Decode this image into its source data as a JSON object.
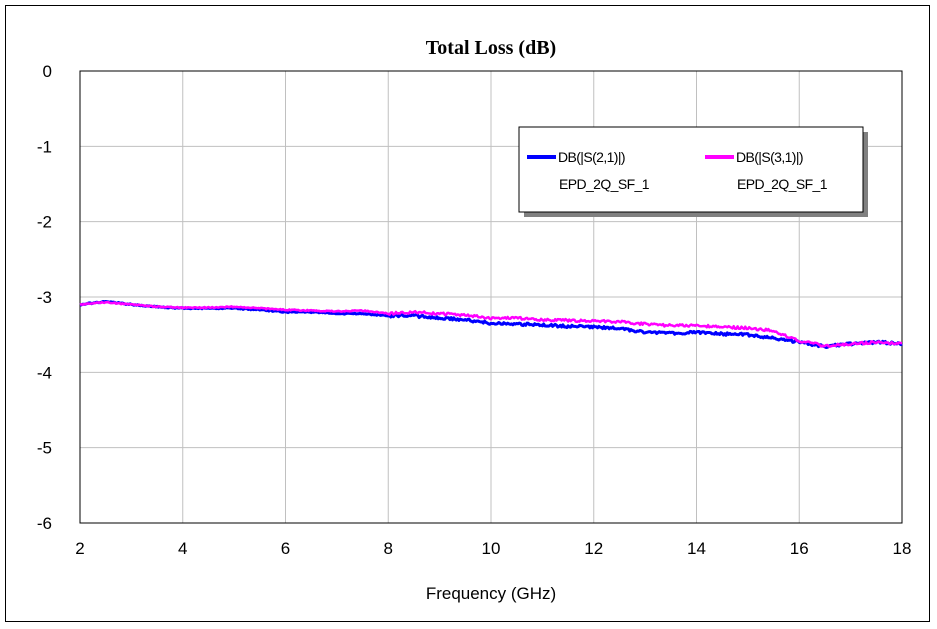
{
  "chart_data": {
    "type": "line",
    "title": "Total Loss (dB)",
    "xlabel": "Frequency (GHz)",
    "ylabel": "",
    "xlim": [
      2,
      18
    ],
    "ylim": [
      -6,
      0
    ],
    "xticks": [
      2,
      4,
      6,
      8,
      10,
      12,
      14,
      16,
      18
    ],
    "yticks": [
      0,
      -1,
      -2,
      -3,
      -4,
      -5,
      -6
    ],
    "xtick_labels": [
      "2",
      "4",
      "6",
      "8",
      "10",
      "12",
      "14",
      "16",
      "18"
    ],
    "ytick_labels": [
      "0",
      "-1",
      "-2",
      "-3",
      "-4",
      "-5",
      "-6"
    ],
    "grid": true,
    "legend_position": "top-right",
    "series": [
      {
        "name": "DB(|S(2,1)|)",
        "subname": "EPD_2Q_SF_1",
        "color": "#0000ff",
        "x": [
          2,
          2.5,
          3,
          3.5,
          4,
          4.5,
          5,
          5.5,
          6,
          6.5,
          7,
          7.5,
          8,
          8.5,
          9,
          9.5,
          10,
          10.5,
          11,
          11.5,
          12,
          12.5,
          13,
          13.5,
          14,
          14.5,
          15,
          15.5,
          16,
          16.5,
          17,
          17.5,
          18
        ],
        "y": [
          -3.1,
          -3.06,
          -3.1,
          -3.13,
          -3.15,
          -3.15,
          -3.15,
          -3.17,
          -3.2,
          -3.2,
          -3.22,
          -3.22,
          -3.25,
          -3.25,
          -3.28,
          -3.3,
          -3.35,
          -3.36,
          -3.37,
          -3.39,
          -3.4,
          -3.42,
          -3.47,
          -3.48,
          -3.47,
          -3.49,
          -3.5,
          -3.55,
          -3.6,
          -3.66,
          -3.62,
          -3.6,
          -3.62
        ]
      },
      {
        "name": "DB(|S(3,1)|)",
        "subname": "EPD_2Q_SF_1",
        "color": "#ff00ff",
        "x": [
          2,
          2.5,
          3,
          3.5,
          4,
          4.5,
          5,
          5.5,
          6,
          6.5,
          7,
          7.5,
          8,
          8.5,
          9,
          9.5,
          10,
          10.5,
          11,
          11.5,
          12,
          12.5,
          13,
          13.5,
          14,
          14.5,
          15,
          15.5,
          16,
          16.5,
          17,
          17.5,
          18
        ],
        "y": [
          -3.1,
          -3.07,
          -3.1,
          -3.13,
          -3.14,
          -3.14,
          -3.13,
          -3.15,
          -3.17,
          -3.18,
          -3.19,
          -3.18,
          -3.22,
          -3.2,
          -3.22,
          -3.24,
          -3.28,
          -3.28,
          -3.3,
          -3.31,
          -3.32,
          -3.33,
          -3.36,
          -3.38,
          -3.38,
          -3.4,
          -3.41,
          -3.45,
          -3.58,
          -3.65,
          -3.62,
          -3.6,
          -3.62
        ]
      }
    ]
  },
  "colors": {
    "grid": "#c0c0c0",
    "legend_shadow": "#808080"
  }
}
